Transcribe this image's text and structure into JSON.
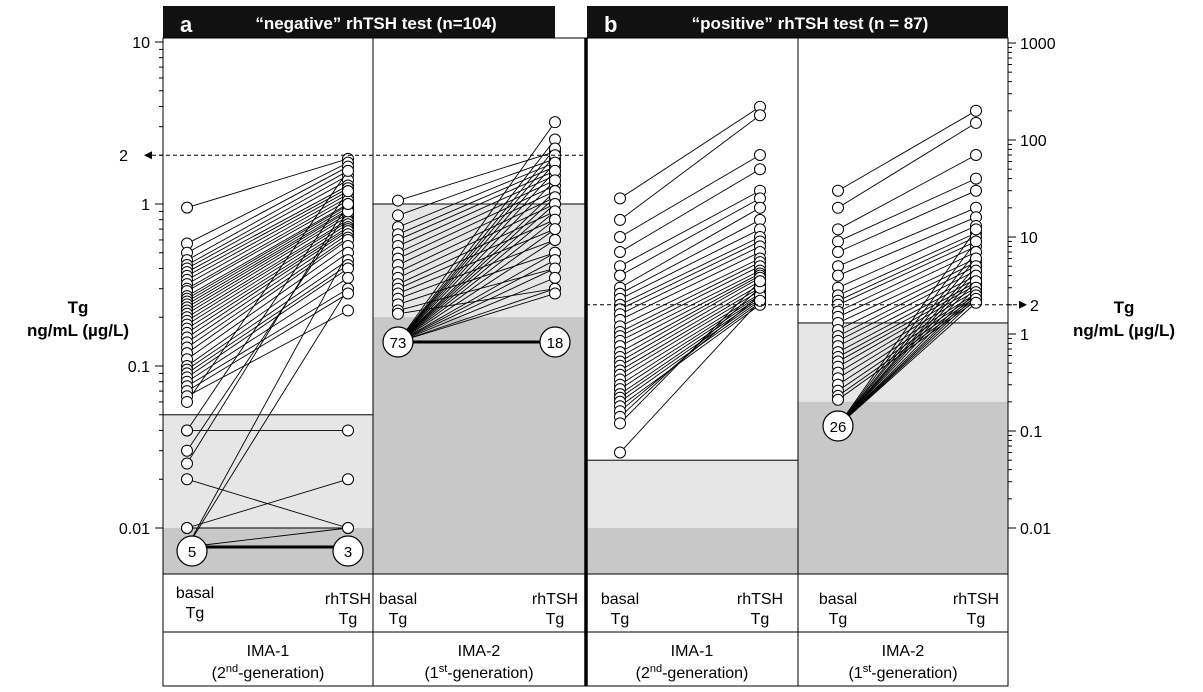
{
  "chart_data": [
    {
      "type": "line",
      "panel_letter": "a",
      "title": "“negative” rhTSH test (n=104)",
      "ylabel_line1": "Tg",
      "ylabel_line2": "ng/mL (µg/L)",
      "scale": "log",
      "ylim": [
        0.005,
        10
      ],
      "yticks": [
        {
          "value": 10,
          "label": "10"
        },
        {
          "value": 1,
          "label": "1"
        },
        {
          "value": 0.1,
          "label": "0.1"
        },
        {
          "value": 0.01,
          "label": "0.01"
        }
      ],
      "cutoff": {
        "value": 2,
        "label": "2"
      },
      "subpanels": [
        {
          "assay": "IMA-1",
          "assay_sub_pre": "(2",
          "assay_sup": "nd",
          "assay_sub_post": "-generation)",
          "x_labels": [
            [
              "basal",
              "Tg"
            ],
            [
              "rhTSH",
              "Tg"
            ]
          ],
          "functional_sensitivity": 0.05,
          "detection_limit": 0.01,
          "undetectable": {
            "basal_count": "5",
            "rhtsh_count": "3"
          },
          "pairs": [
            [
              0.95,
              1.9
            ],
            [
              0.57,
              1.8
            ],
            [
              0.5,
              1.7
            ],
            [
              0.45,
              1.6
            ],
            [
              0.42,
              1.5
            ],
            [
              0.4,
              1.4
            ],
            [
              0.38,
              1.3
            ],
            [
              0.36,
              1.25
            ],
            [
              0.34,
              1.2
            ],
            [
              0.32,
              1.15
            ],
            [
              0.3,
              1.1
            ],
            [
              0.29,
              1.05
            ],
            [
              0.27,
              1.0
            ],
            [
              0.26,
              0.98
            ],
            [
              0.25,
              0.95
            ],
            [
              0.24,
              0.92
            ],
            [
              0.23,
              0.9
            ],
            [
              0.22,
              0.87
            ],
            [
              0.21,
              0.84
            ],
            [
              0.2,
              0.8
            ],
            [
              0.19,
              0.78
            ],
            [
              0.18,
              0.75
            ],
            [
              0.17,
              0.72
            ],
            [
              0.16,
              0.7
            ],
            [
              0.15,
              0.68
            ],
            [
              0.14,
              0.65
            ],
            [
              0.13,
              0.62
            ],
            [
              0.12,
              0.6
            ],
            [
              0.11,
              0.55
            ],
            [
              0.1,
              0.5
            ],
            [
              0.095,
              0.45
            ],
            [
              0.09,
              0.42
            ],
            [
              0.085,
              0.4
            ],
            [
              0.08,
              0.35
            ],
            [
              0.075,
              0.3
            ],
            [
              0.07,
              0.28
            ],
            [
              0.065,
              0.22
            ],
            [
              0.06,
              1.6
            ],
            [
              0.04,
              1.2
            ],
            [
              0.04,
              0.04
            ],
            [
              0.03,
              0.9
            ],
            [
              0.025,
              1.0
            ],
            [
              0.02,
              0.01
            ],
            [
              0.01,
              0.01
            ],
            [
              0.01,
              0.02
            ]
          ]
        },
        {
          "assay": "IMA-2",
          "assay_sub_pre": "(1",
          "assay_sup": "st",
          "assay_sub_post": "-generation)",
          "x_labels": [
            [
              "basal",
              "Tg"
            ],
            [
              "rhTSH",
              "Tg"
            ]
          ],
          "functional_sensitivity": 1.0,
          "detection_limit": 0.2,
          "undetectable": {
            "basal_count": "73",
            "rhtsh_count": "18"
          },
          "pairs": [
            [
              1.05,
              2.1
            ],
            [
              0.85,
              1.9
            ],
            [
              0.72,
              1.8
            ],
            [
              0.65,
              1.7
            ],
            [
              0.6,
              1.6
            ],
            [
              0.55,
              1.5
            ],
            [
              0.5,
              1.4
            ],
            [
              0.46,
              1.3
            ],
            [
              0.42,
              1.2
            ],
            [
              0.38,
              1.1
            ],
            [
              0.35,
              1.0
            ],
            [
              0.32,
              0.9
            ],
            [
              0.3,
              0.8
            ],
            [
              0.28,
              0.7
            ],
            [
              0.26,
              0.6
            ],
            [
              0.24,
              0.5
            ],
            [
              0.22,
              0.4
            ],
            [
              0.21,
              0.3
            ]
          ],
          "from_undetectable": [
            3.2,
            2.5,
            2.2,
            2.0,
            1.8,
            1.6,
            1.4,
            1.2,
            1.1,
            1.0,
            0.9,
            0.8,
            0.7,
            0.6,
            0.5,
            0.45,
            0.4,
            0.35,
            0.3,
            0.28
          ]
        }
      ]
    },
    {
      "type": "line",
      "panel_letter": "b",
      "title": "“positive” rhTSH test (n = 87)",
      "ylabel_line1": "Tg",
      "ylabel_line2": "ng/mL (µg/L)",
      "scale": "log",
      "ylim": [
        0.003,
        1000
      ],
      "yticks": [
        {
          "value": 1000,
          "label": "1000"
        },
        {
          "value": 100,
          "label": "100"
        },
        {
          "value": 10,
          "label": "10"
        },
        {
          "value": 1,
          "label": "1"
        },
        {
          "value": 0.1,
          "label": "0.1"
        },
        {
          "value": 0.01,
          "label": "0.01"
        }
      ],
      "cutoff": {
        "value": 2,
        "label": "2"
      },
      "subpanels": [
        {
          "assay": "IMA-1",
          "assay_sub_pre": "(2",
          "assay_sup": "nd",
          "assay_sub_post": "-generation)",
          "x_labels": [
            [
              "basal",
              "Tg"
            ],
            [
              "rhTSH",
              "Tg"
            ]
          ],
          "functional_sensitivity": 0.05,
          "detection_limit": 0.01,
          "pairs": [
            [
              25,
              220
            ],
            [
              15,
              180
            ],
            [
              10,
              70
            ],
            [
              7,
              50
            ],
            [
              5,
              30
            ],
            [
              4,
              25
            ],
            [
              3,
              20
            ],
            [
              2.6,
              15
            ],
            [
              2.3,
              12
            ],
            [
              2,
              10
            ],
            [
              1.8,
              9
            ],
            [
              1.6,
              8
            ],
            [
              1.4,
              7
            ],
            [
              1.2,
              6
            ],
            [
              1.05,
              5.5
            ],
            [
              0.95,
              5
            ],
            [
              0.85,
              4.5
            ],
            [
              0.75,
              4.2
            ],
            [
              0.65,
              4
            ],
            [
              0.58,
              3.8
            ],
            [
              0.52,
              3.5
            ],
            [
              0.47,
              3.2
            ],
            [
              0.42,
              3
            ],
            [
              0.38,
              2.8
            ],
            [
              0.34,
              2.6
            ],
            [
              0.3,
              2.5
            ],
            [
              0.27,
              2.4
            ],
            [
              0.24,
              2.3
            ],
            [
              0.22,
              2.2
            ],
            [
              0.2,
              2.1
            ],
            [
              0.18,
              2
            ],
            [
              0.16,
              2.5
            ],
            [
              0.14,
              3
            ],
            [
              0.12,
              3.5
            ],
            [
              0.06,
              2.2
            ]
          ]
        },
        {
          "assay": "IMA-2",
          "assay_sub_pre": "(1",
          "assay_sup": "st",
          "assay_sub_post": "-generation)",
          "x_labels": [
            [
              "basal",
              "Tg"
            ],
            [
              "rhTSH",
              "Tg"
            ]
          ],
          "functional_sensitivity": 1.3,
          "detection_limit": 0.2,
          "undetectable": {
            "basal_count": "26"
          },
          "pairs": [
            [
              30,
              200
            ],
            [
              20,
              150
            ],
            [
              12,
              70
            ],
            [
              9,
              40
            ],
            [
              7,
              30
            ],
            [
              5,
              20
            ],
            [
              4,
              16
            ],
            [
              3,
              13
            ],
            [
              2.5,
              11
            ],
            [
              2.2,
              10
            ],
            [
              2,
              9
            ],
            [
              1.7,
              8
            ],
            [
              1.5,
              7
            ],
            [
              1.3,
              6
            ],
            [
              1.1,
              5.5
            ],
            [
              0.95,
              5
            ],
            [
              0.85,
              4.5
            ],
            [
              0.75,
              4
            ],
            [
              0.65,
              3.7
            ],
            [
              0.58,
              3.4
            ],
            [
              0.52,
              3.2
            ],
            [
              0.46,
              3
            ],
            [
              0.4,
              2.8
            ],
            [
              0.35,
              2.6
            ],
            [
              0.3,
              2.5
            ],
            [
              0.26,
              2.4
            ],
            [
              0.23,
              2.3
            ],
            [
              0.21,
              2.2
            ]
          ],
          "from_undetectable": [
            12,
            9,
            7,
            6,
            5,
            4.5,
            4,
            3.5,
            3,
            2.7,
            2.5,
            2.3,
            2.1
          ]
        }
      ]
    }
  ]
}
